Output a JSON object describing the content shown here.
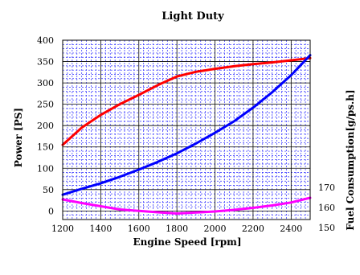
{
  "chart_data": {
    "type": "line",
    "title": "Light Duty",
    "xlabel": "Engine Speed [rpm]",
    "ylabel_left": "Power [PS]",
    "ylabel_right": "Fuel Consumption[g/ps.h]",
    "xlim": [
      1200,
      2500
    ],
    "ylim_left": [
      -20,
      400
    ],
    "ylim_right": [
      150,
      170
    ],
    "grid": true,
    "x_ticks": [
      1200,
      1400,
      1600,
      1800,
      2000,
      2200,
      2400
    ],
    "y_ticks_left": [
      0,
      50,
      100,
      150,
      200,
      250,
      300,
      350,
      400
    ],
    "y_ticks_right": [
      150,
      160,
      170
    ],
    "series": [
      {
        "name": "",
        "axis": "left",
        "color": "#ff0000",
        "x": [
          1200,
          1300,
          1400,
          1500,
          1600,
          1700,
          1800,
          1900,
          2000,
          2100,
          2200,
          2300,
          2400,
          2500
        ],
        "values": [
          155,
          195,
          225,
          250,
          272,
          295,
          315,
          326,
          333,
          339,
          344,
          348,
          353,
          358
        ]
      },
      {
        "name": "",
        "axis": "left",
        "color": "#0000ff",
        "x": [
          1200,
          1300,
          1400,
          1500,
          1600,
          1700,
          1800,
          1900,
          2000,
          2100,
          2200,
          2300,
          2400,
          2500
        ],
        "values": [
          38,
          52,
          65,
          80,
          97,
          115,
          135,
          158,
          183,
          210,
          242,
          278,
          318,
          365
        ]
      },
      {
        "name": "",
        "axis": "right",
        "color": "#ff00ff",
        "x": [
          1200,
          1300,
          1400,
          1500,
          1600,
          1700,
          1800,
          1900,
          2000,
          2100,
          2200,
          2300,
          2400,
          2500
        ],
        "values": [
          164,
          162.2,
          160.6,
          159,
          158.3,
          157.6,
          157,
          157.5,
          158,
          158.8,
          159.8,
          161,
          162.5,
          164.8
        ]
      }
    ]
  }
}
